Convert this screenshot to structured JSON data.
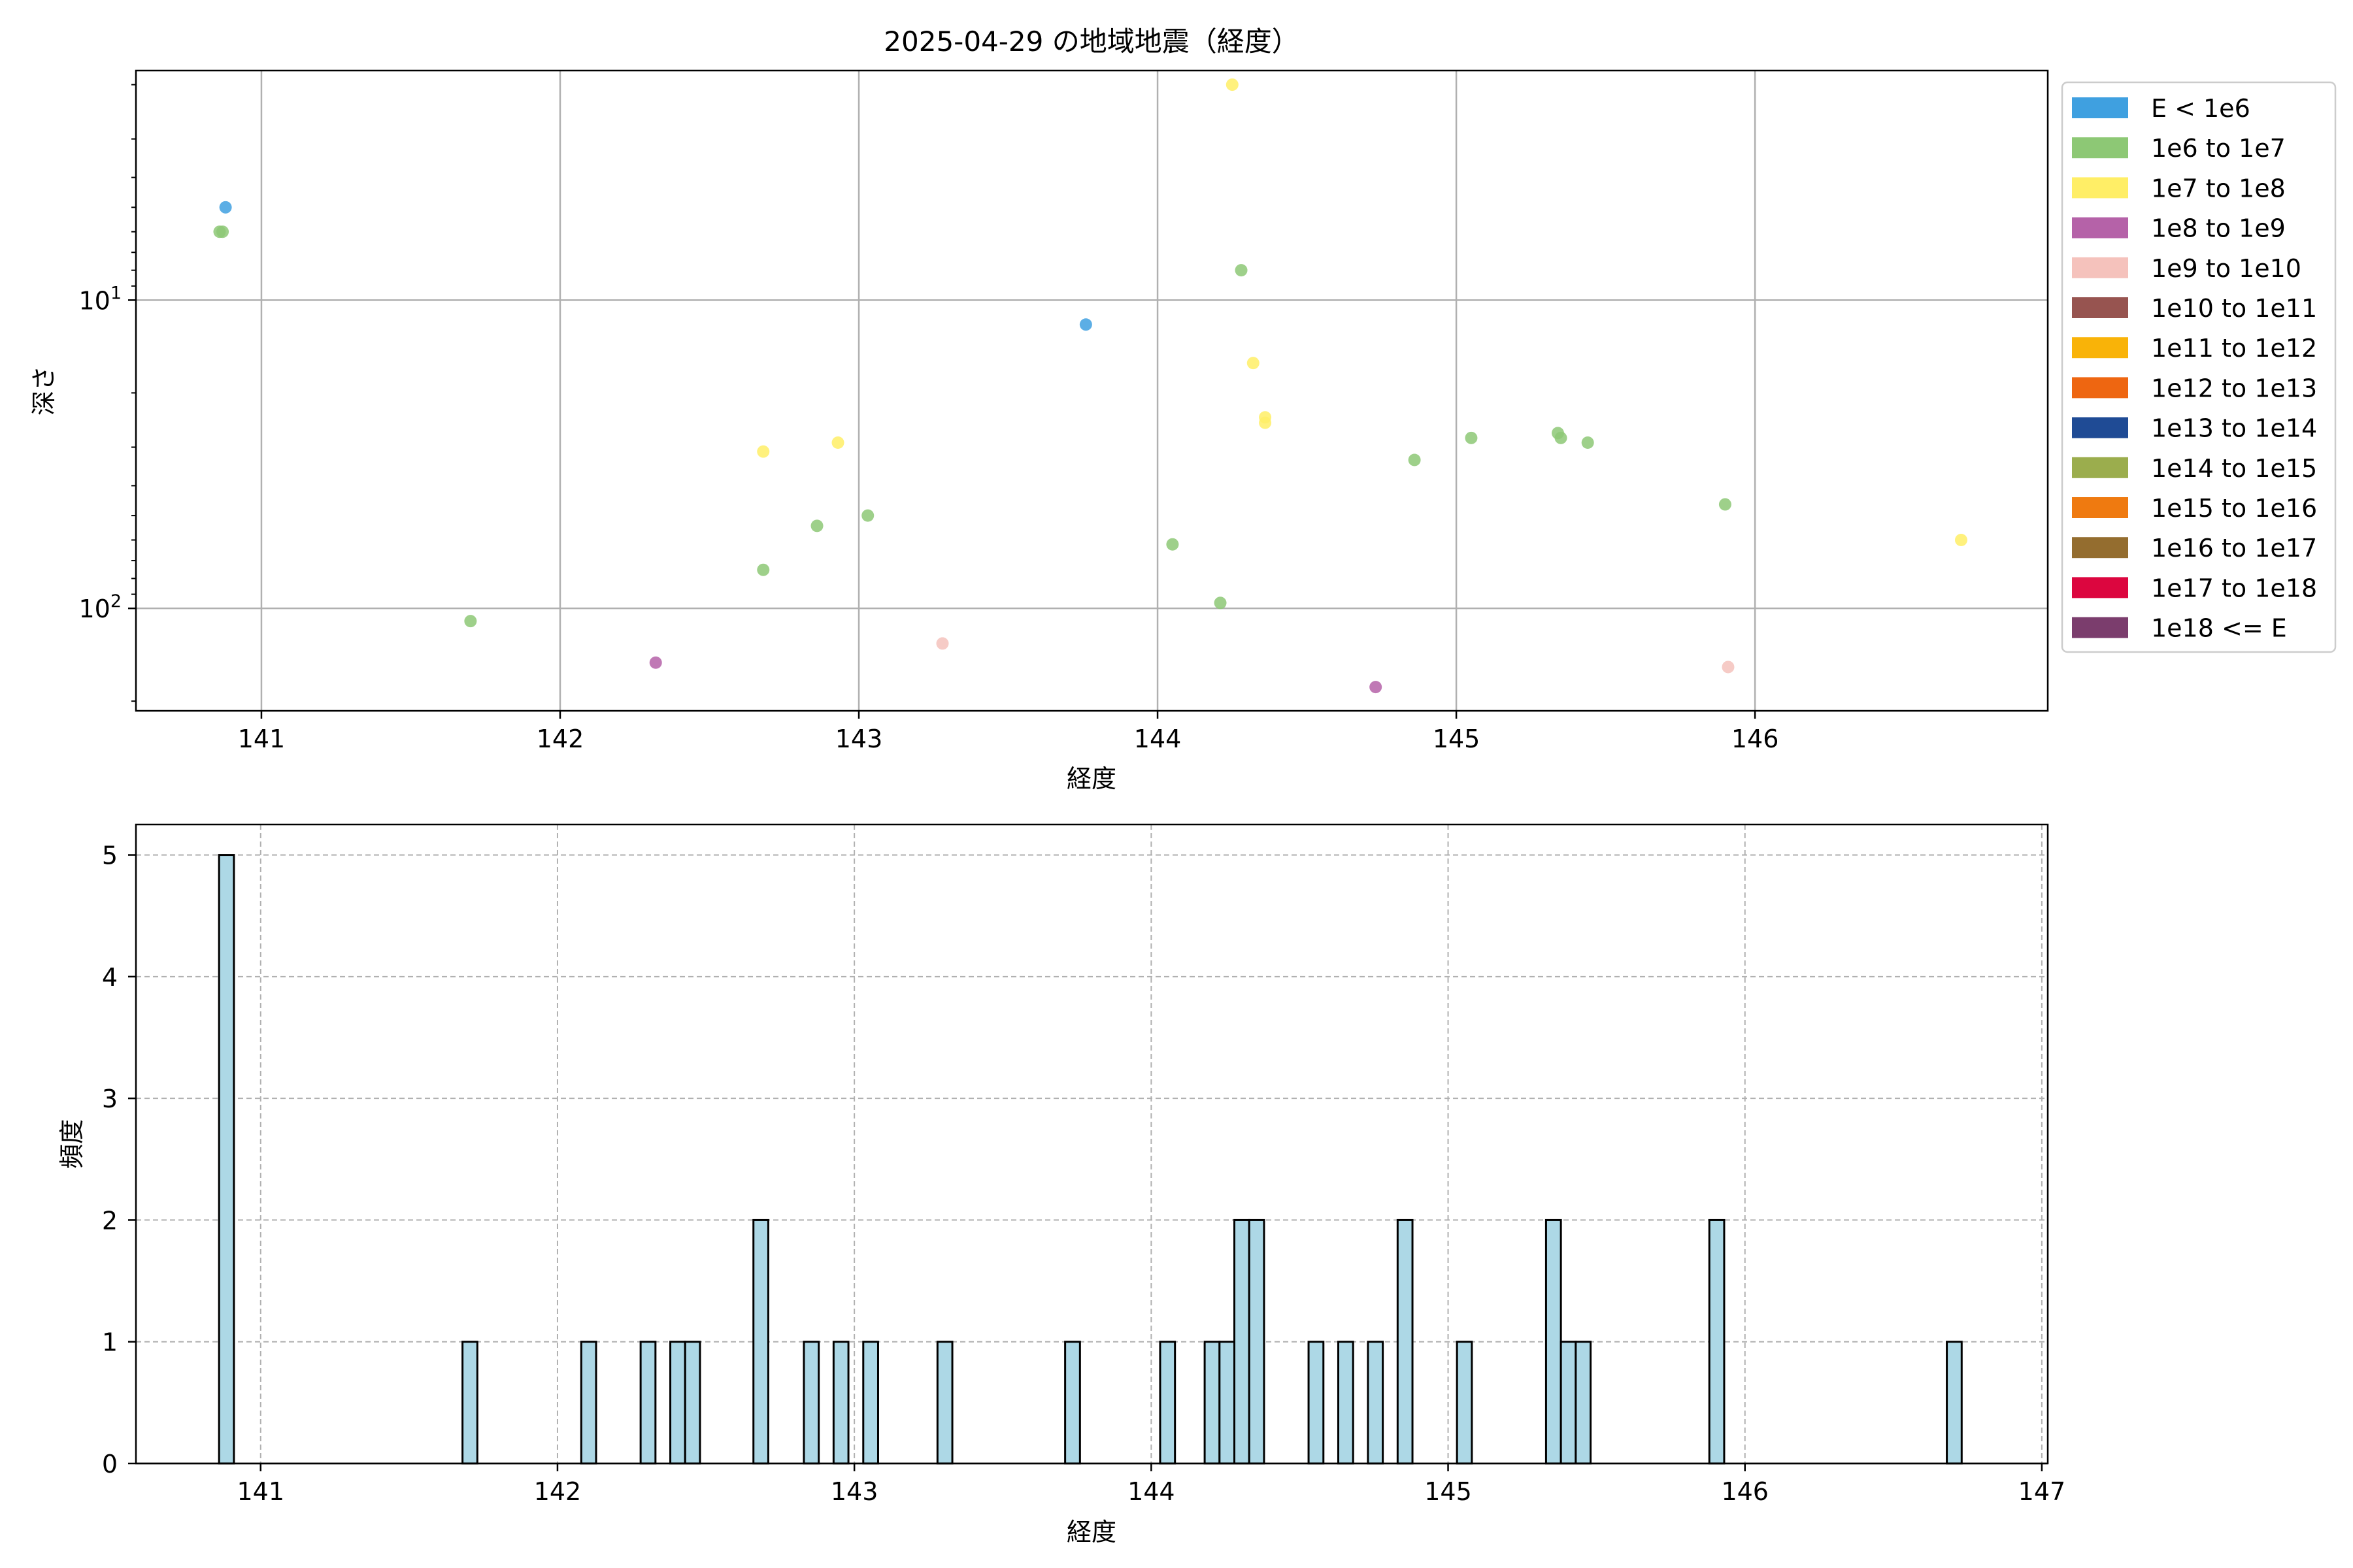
{
  "chart_data": [
    {
      "type": "scatter",
      "title": "2025-04-29 の地域地震（経度）",
      "xlabel": "経度",
      "ylabel": "深さ",
      "xlim": [
        140.58,
        146.98
      ],
      "ylim": [
        215,
        1.8
      ],
      "yscale": "log",
      "y_inverted": true,
      "grid": true,
      "x_ticks": [
        141,
        142,
        143,
        144,
        145,
        146
      ],
      "x_tick_labels": [
        "141",
        "142",
        "143",
        "144",
        "145",
        "146"
      ],
      "y_ticks": [
        10,
        100
      ],
      "y_tick_labels": [
        {
          "base": "10",
          "exp": "1"
        },
        {
          "base": "10",
          "exp": "2"
        }
      ],
      "legend_position": "outside-right-top",
      "legend": [
        {
          "label": "E < 1e6",
          "color": "#3fa0e0"
        },
        {
          "label": "1e6 to 1e7",
          "color": "#8dc875"
        },
        {
          "label": "1e7 to 1e8",
          "color": "#ffee66"
        },
        {
          "label": "1e8 to 1e9",
          "color": "#b562a8"
        },
        {
          "label": "1e9 to 1e10",
          "color": "#f5c2bc"
        },
        {
          "label": "1e10 to 1e11",
          "color": "#975450"
        },
        {
          "label": "1e11 to 1e12",
          "color": "#f9b308"
        },
        {
          "label": "1e12 to 1e13",
          "color": "#ee6611"
        },
        {
          "label": "1e13 to 1e14",
          "color": "#1f4b95"
        },
        {
          "label": "1e14 to 1e15",
          "color": "#9bad4d"
        },
        {
          "label": "1e15 to 1e16",
          "color": "#ef7a10"
        },
        {
          "label": "1e16 to 1e17",
          "color": "#946d2f"
        },
        {
          "label": "1e17 to 1e18",
          "color": "#dc063f"
        },
        {
          "label": "1e18 <= E",
          "color": "#7b3d6d"
        }
      ],
      "points": [
        {
          "x": 140.88,
          "y": 5.0,
          "c": 0
        },
        {
          "x": 140.87,
          "y": 6.0,
          "c": 1
        },
        {
          "x": 140.86,
          "y": 6.0,
          "c": 1
        },
        {
          "x": 141.7,
          "y": 110,
          "c": 1
        },
        {
          "x": 142.32,
          "y": 150,
          "c": 3
        },
        {
          "x": 142.68,
          "y": 31,
          "c": 2
        },
        {
          "x": 142.68,
          "y": 75,
          "c": 1
        },
        {
          "x": 142.86,
          "y": 54,
          "c": 1
        },
        {
          "x": 142.93,
          "y": 29,
          "c": 2
        },
        {
          "x": 143.03,
          "y": 50,
          "c": 1
        },
        {
          "x": 143.28,
          "y": 130,
          "c": 4
        },
        {
          "x": 143.76,
          "y": 12,
          "c": 0
        },
        {
          "x": 144.05,
          "y": 62,
          "c": 1
        },
        {
          "x": 144.21,
          "y": 96,
          "c": 1
        },
        {
          "x": 144.25,
          "y": 2.0,
          "c": 2
        },
        {
          "x": 144.28,
          "y": 8.0,
          "c": 1
        },
        {
          "x": 144.32,
          "y": 16,
          "c": 2
        },
        {
          "x": 144.36,
          "y": 24,
          "c": 2
        },
        {
          "x": 144.36,
          "y": 25,
          "c": 2
        },
        {
          "x": 144.73,
          "y": 180,
          "c": 3
        },
        {
          "x": 144.86,
          "y": 33,
          "c": 1
        },
        {
          "x": 145.05,
          "y": 28,
          "c": 1
        },
        {
          "x": 145.34,
          "y": 27,
          "c": 1
        },
        {
          "x": 145.35,
          "y": 28,
          "c": 1
        },
        {
          "x": 145.44,
          "y": 29,
          "c": 1
        },
        {
          "x": 145.9,
          "y": 46,
          "c": 1
        },
        {
          "x": 145.91,
          "y": 155,
          "c": 4
        },
        {
          "x": 146.69,
          "y": 60,
          "c": 2
        }
      ]
    },
    {
      "type": "bar",
      "xlabel": "経度",
      "ylabel": "頻度",
      "xlim": [
        140.58,
        147.02
      ],
      "ylim": [
        0,
        5.25
      ],
      "grid": true,
      "bar_color": "#add8e6",
      "x_ticks": [
        141,
        142,
        143,
        144,
        145,
        146,
        147
      ],
      "x_tick_labels": [
        "141",
        "142",
        "143",
        "144",
        "145",
        "146",
        "147"
      ],
      "y_ticks": [
        0,
        1,
        2,
        3,
        4,
        5
      ],
      "y_tick_labels": [
        "0",
        "1",
        "2",
        "3",
        "4",
        "5"
      ],
      "bins": [
        {
          "x0": 140.86,
          "x1": 140.91,
          "count": 5
        },
        {
          "x0": 141.68,
          "x1": 141.73,
          "count": 1
        },
        {
          "x0": 142.08,
          "x1": 142.13,
          "count": 1
        },
        {
          "x0": 142.28,
          "x1": 142.33,
          "count": 1
        },
        {
          "x0": 142.38,
          "x1": 142.43,
          "count": 1
        },
        {
          "x0": 142.43,
          "x1": 142.48,
          "count": 1
        },
        {
          "x0": 142.66,
          "x1": 142.71,
          "count": 2
        },
        {
          "x0": 142.83,
          "x1": 142.88,
          "count": 1
        },
        {
          "x0": 142.93,
          "x1": 142.98,
          "count": 1
        },
        {
          "x0": 143.03,
          "x1": 143.08,
          "count": 1
        },
        {
          "x0": 143.28,
          "x1": 143.33,
          "count": 1
        },
        {
          "x0": 143.71,
          "x1": 143.76,
          "count": 1
        },
        {
          "x0": 144.03,
          "x1": 144.08,
          "count": 1
        },
        {
          "x0": 144.18,
          "x1": 144.23,
          "count": 1
        },
        {
          "x0": 144.23,
          "x1": 144.28,
          "count": 1
        },
        {
          "x0": 144.28,
          "x1": 144.33,
          "count": 2
        },
        {
          "x0": 144.33,
          "x1": 144.38,
          "count": 2
        },
        {
          "x0": 144.53,
          "x1": 144.58,
          "count": 1
        },
        {
          "x0": 144.63,
          "x1": 144.68,
          "count": 1
        },
        {
          "x0": 144.73,
          "x1": 144.78,
          "count": 1
        },
        {
          "x0": 144.83,
          "x1": 144.88,
          "count": 2
        },
        {
          "x0": 145.03,
          "x1": 145.08,
          "count": 1
        },
        {
          "x0": 145.33,
          "x1": 145.38,
          "count": 2
        },
        {
          "x0": 145.38,
          "x1": 145.43,
          "count": 1
        },
        {
          "x0": 145.43,
          "x1": 145.48,
          "count": 1
        },
        {
          "x0": 145.88,
          "x1": 145.93,
          "count": 2
        },
        {
          "x0": 146.68,
          "x1": 146.73,
          "count": 1
        }
      ]
    }
  ]
}
